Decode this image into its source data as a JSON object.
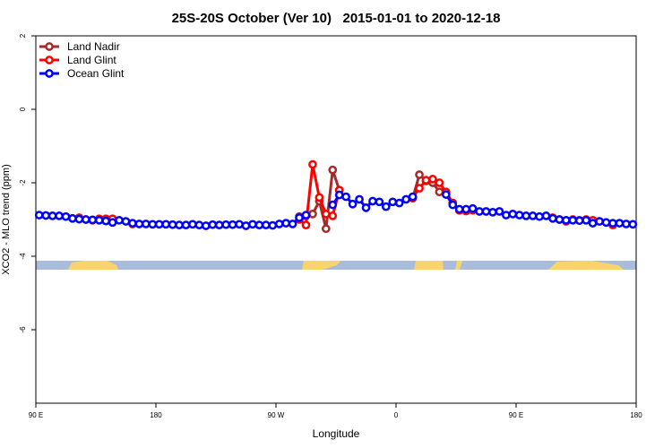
{
  "chart_data": {
    "type": "line",
    "title": "25S-20S October (Ver 10)   2015-01-01 to 2020-12-18",
    "xlabel": "Longitude",
    "ylabel": "XCO2 - MLO trend (ppm)",
    "xlim": [
      90,
      540
    ],
    "xticks": [
      {
        "value": 90,
        "label": "90 E"
      },
      180,
      {
        "value": 270,
        "label": "90 W"
      },
      {
        "value": 360,
        "label": "0"
      },
      {
        "value": 450,
        "label": "90 E"
      },
      {
        "value": 540,
        "label": "180"
      }
    ],
    "ylim": [
      -8,
      2
    ],
    "yticks": [
      2,
      0,
      -2,
      -4,
      -6
    ],
    "legend": "topleft",
    "x": [
      92.5,
      97.5,
      102.5,
      107.5,
      112.5,
      117.5,
      122.5,
      127.5,
      132.5,
      137.5,
      142.5,
      147.5,
      152.5,
      157.5,
      162.5,
      167.5,
      172.5,
      177.5,
      182.5,
      187.5,
      192.5,
      197.5,
      202.5,
      207.5,
      212.5,
      217.5,
      222.5,
      227.5,
      232.5,
      237.5,
      242.5,
      247.5,
      252.5,
      257.5,
      262.5,
      267.5,
      272.5,
      277.5,
      282.5,
      287.5,
      292.5,
      297.5,
      302.5,
      307.5,
      312.5,
      317.5,
      322.5,
      327.5,
      332.5,
      337.5,
      342.5,
      347.5,
      352.5,
      357.5,
      362.5,
      367.5,
      372.5,
      377.5,
      382.5,
      387.5,
      392.5,
      397.5,
      402.5,
      407.5,
      412.5,
      417.5,
      422.5,
      427.5,
      432.5,
      437.5,
      442.5,
      447.5,
      452.5,
      457.5,
      462.5,
      467.5,
      472.5,
      477.5,
      482.5,
      487.5,
      492.5,
      497.5,
      502.5,
      507.5,
      512.5,
      517.5,
      522.5,
      527.5,
      532.5,
      537.5
    ],
    "series": [
      {
        "name": "Land Nadir",
        "color": "#a52a2a",
        "values": [
          null,
          null,
          null,
          null,
          null,
          null,
          null,
          null,
          null,
          null,
          null,
          null,
          null,
          null,
          null,
          null,
          null,
          null,
          null,
          null,
          null,
          null,
          null,
          null,
          null,
          null,
          null,
          null,
          null,
          null,
          null,
          null,
          null,
          null,
          null,
          null,
          null,
          null,
          null,
          -2.92,
          -2.9,
          -2.85,
          -2.5,
          -3.25,
          -1.65,
          -2.2,
          null,
          null,
          null,
          null,
          null,
          null,
          null,
          null,
          null,
          null,
          -2.42,
          -1.78,
          -1.95,
          -2.0,
          -2.25,
          -2.3,
          -2.55,
          -2.75,
          null,
          null,
          null,
          null,
          null,
          null,
          null,
          null,
          null,
          null,
          null,
          null,
          null,
          null,
          null,
          null,
          null,
          null,
          null,
          null,
          null,
          null,
          null,
          null,
          null,
          null
        ]
      },
      {
        "name": "Land Glint",
        "color": "#ff0000",
        "values": [
          null,
          null,
          null,
          null,
          null,
          null,
          -2.95,
          -3.0,
          -3.02,
          -2.98,
          -2.98,
          -2.98,
          null,
          null,
          -3.12,
          null,
          null,
          null,
          null,
          null,
          null,
          null,
          null,
          null,
          null,
          null,
          null,
          null,
          null,
          null,
          null,
          null,
          null,
          null,
          null,
          null,
          null,
          null,
          null,
          -3.0,
          -3.15,
          -1.5,
          -2.4,
          -2.85,
          -2.9,
          -2.2,
          null,
          null,
          null,
          null,
          null,
          null,
          null,
          null,
          null,
          null,
          -2.4,
          -2.15,
          -1.93,
          -1.9,
          -2.0,
          -2.25,
          -2.55,
          -2.75,
          -2.77,
          -2.75,
          null,
          null,
          null,
          null,
          null,
          null,
          null,
          null,
          null,
          null,
          null,
          -2.95,
          -3.0,
          -3.05,
          -3.0,
          -3.02,
          -3.0,
          -3.02,
          -3.05,
          null,
          -3.15,
          null,
          null,
          null
        ]
      },
      {
        "name": "Ocean Glint",
        "color": "#0000ff",
        "values": [
          -2.88,
          -2.89,
          -2.9,
          -2.9,
          -2.92,
          -2.97,
          -2.99,
          -3.0,
          -3.01,
          -3.02,
          -3.04,
          -3.08,
          -3.02,
          -3.05,
          -3.1,
          -3.12,
          -3.12,
          -3.13,
          -3.13,
          -3.13,
          -3.14,
          -3.15,
          -3.15,
          -3.13,
          -3.15,
          -3.17,
          -3.14,
          -3.15,
          -3.14,
          -3.14,
          -3.13,
          -3.17,
          -3.13,
          -3.15,
          -3.15,
          -3.16,
          -3.12,
          -3.1,
          -3.12,
          -2.95,
          -2.88,
          null,
          null,
          null,
          -2.6,
          -2.33,
          -2.38,
          -2.58,
          -2.45,
          -2.68,
          -2.5,
          -2.52,
          -2.65,
          -2.52,
          -2.55,
          -2.45,
          -2.38,
          null,
          null,
          null,
          null,
          -2.32,
          -2.6,
          -2.72,
          -2.72,
          -2.7,
          -2.78,
          -2.78,
          -2.8,
          -2.78,
          -2.88,
          -2.85,
          -2.88,
          -2.9,
          -2.9,
          -2.92,
          -2.9,
          -2.97,
          -3.0,
          -3.02,
          -3.02,
          -3.03,
          -3.02,
          -3.1,
          -3.05,
          -3.08,
          -3.1,
          -3.1,
          -3.12,
          -3.13
        ]
      }
    ]
  }
}
